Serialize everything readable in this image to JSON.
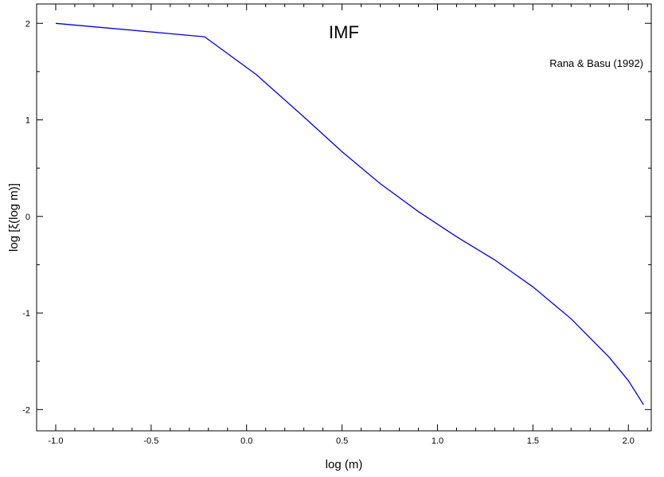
{
  "chart_data": {
    "type": "line",
    "title": "IMF",
    "annotation": "Rana & Basu (1992)",
    "xlabel": "log (m)",
    "ylabel": "log [ξ(log m)]",
    "xlim": [
      -1.1,
      2.12
    ],
    "ylim": [
      -2.22,
      2.2
    ],
    "x_ticks": [
      -1.0,
      -0.5,
      0.0,
      0.5,
      1.0,
      1.5,
      2.0
    ],
    "x_tick_labels": [
      "-1.0",
      "-0.5",
      "0.0",
      "0.5",
      "1.0",
      "1.5",
      "2.0"
    ],
    "y_ticks": [
      -2,
      -1,
      0,
      1,
      2
    ],
    "y_tick_labels": [
      "-2",
      "-1",
      "0",
      "1",
      "2"
    ],
    "grid": false,
    "series": [
      {
        "color": "#0000ee",
        "x": [
          -1.0,
          -0.22,
          0.05,
          0.3,
          0.5,
          0.7,
          0.9,
          1.1,
          1.3,
          1.5,
          1.7,
          1.9,
          2.0,
          2.08
        ],
        "y": [
          2.0,
          1.86,
          1.47,
          1.03,
          0.67,
          0.34,
          0.05,
          -0.21,
          -0.45,
          -0.73,
          -1.06,
          -1.46,
          -1.7,
          -1.95
        ]
      }
    ]
  }
}
